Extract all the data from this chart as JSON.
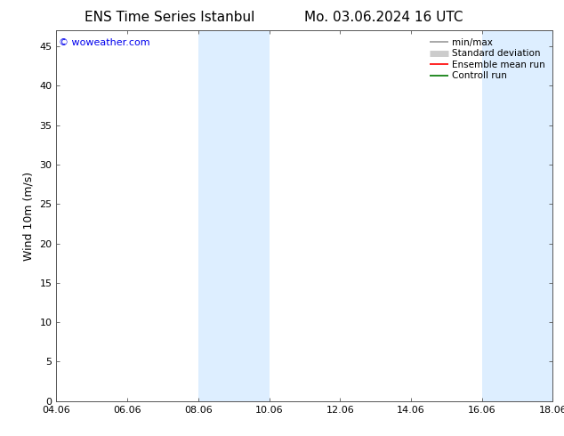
{
  "title_left": "ENS Time Series Istanbul",
  "title_right": "Mo. 03.06.2024 16 UTC",
  "ylabel": "Wind 10m (m/s)",
  "watermark": "© woweather.com",
  "watermark_color": "#0000ee",
  "xlim_start": 4.06,
  "xlim_end": 18.06,
  "ylim_min": 0,
  "ylim_max": 47,
  "yticks": [
    0,
    5,
    10,
    15,
    20,
    25,
    30,
    35,
    40,
    45
  ],
  "xtick_labels": [
    "04.06",
    "06.06",
    "08.06",
    "10.06",
    "12.06",
    "14.06",
    "16.06",
    "18.06"
  ],
  "xtick_positions": [
    4.06,
    6.06,
    8.06,
    10.06,
    12.06,
    14.06,
    16.06,
    18.06
  ],
  "shaded_bands": [
    {
      "x_start": 8.06,
      "x_end": 10.06
    },
    {
      "x_start": 16.06,
      "x_end": 18.06
    }
  ],
  "shaded_color": "#ddeeff",
  "background_color": "#ffffff",
  "legend_items": [
    {
      "label": "min/max",
      "color": "#999999",
      "linewidth": 1.2
    },
    {
      "label": "Standard deviation",
      "color": "#cccccc",
      "linewidth": 5
    },
    {
      "label": "Ensemble mean run",
      "color": "#ff0000",
      "linewidth": 1.2
    },
    {
      "label": "Controll run",
      "color": "#007700",
      "linewidth": 1.2
    }
  ],
  "title_fontsize": 11,
  "ylabel_fontsize": 9,
  "tick_fontsize": 8,
  "legend_fontsize": 7.5,
  "watermark_fontsize": 8
}
